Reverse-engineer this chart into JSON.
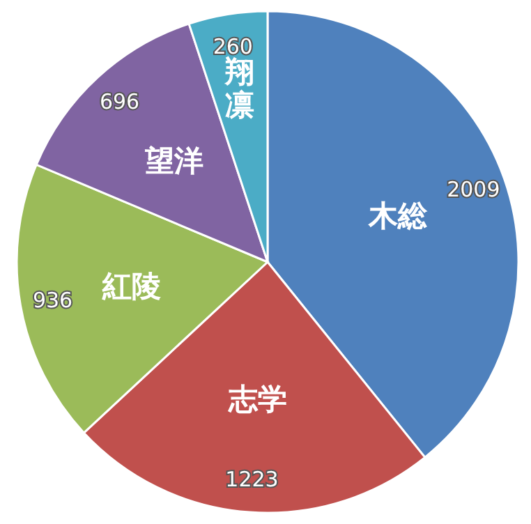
{
  "chart_data": {
    "type": "pie",
    "categories": [
      "木総",
      "志学",
      "紅陵",
      "望洋",
      "翔凛"
    ],
    "values": [
      2009,
      1223,
      936,
      696,
      260
    ],
    "colors": [
      "#4f81bd",
      "#c0504d",
      "#9bbb59",
      "#8064a2",
      "#4bacc6"
    ],
    "data_labels": true
  }
}
